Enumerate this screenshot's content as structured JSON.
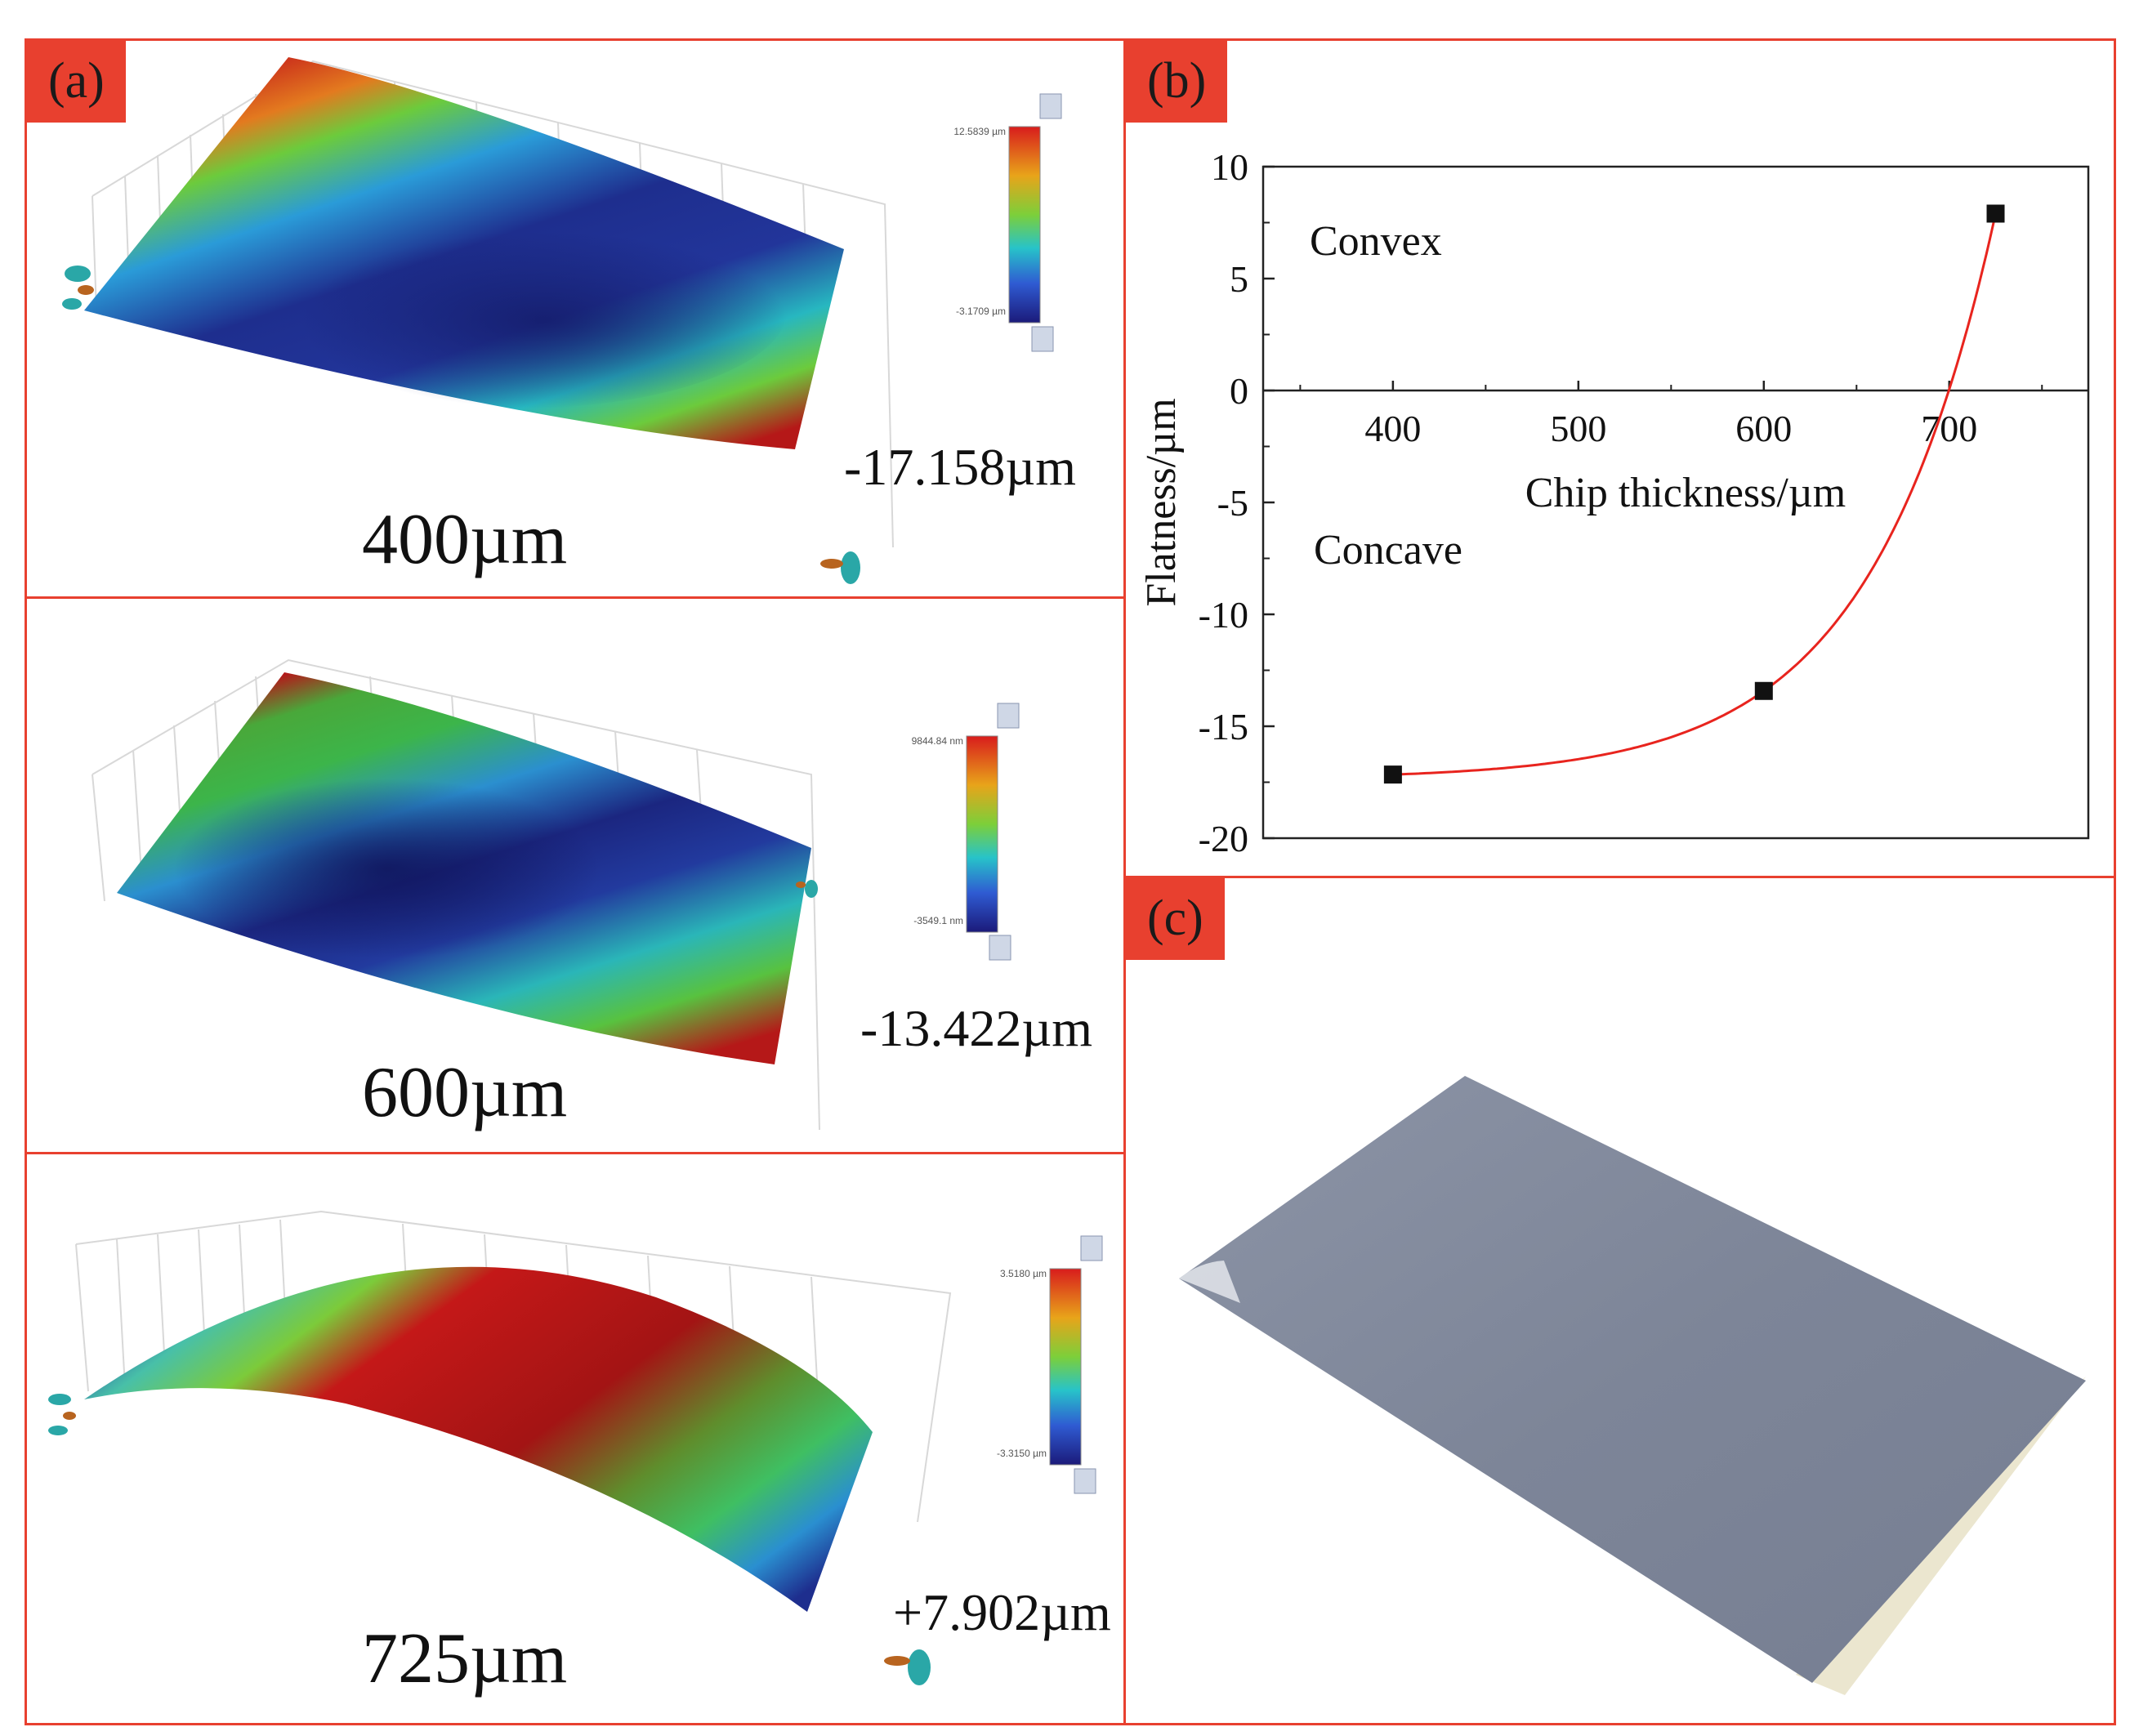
{
  "panels": {
    "a": {
      "tag": "(a)",
      "maps": [
        {
          "thickness": "400µm",
          "flatness": "-17.158µm",
          "scale_max": "12.5839 µm",
          "scale_min": "-3.1709 µm"
        },
        {
          "thickness": "600µm",
          "flatness": "-13.422µm",
          "scale_max": "9844.84 nm",
          "scale_min": "-3549.1 nm"
        },
        {
          "thickness": "725µm",
          "flatness": "+7.902µm",
          "scale_max": "3.5180 µm",
          "scale_min": "-3.3150 µm"
        }
      ]
    },
    "b": {
      "tag": "(b)"
    },
    "c": {
      "tag": "(c)"
    }
  },
  "chart_data": {
    "type": "scatter",
    "xlabel": "Chip thickness/µm",
    "ylabel": "Flatness/µm",
    "xlim": [
      330,
      775
    ],
    "ylim": [
      -20,
      10
    ],
    "xticks": [
      400,
      500,
      600,
      700
    ],
    "yticks": [
      10,
      5,
      0,
      -5,
      -10,
      -15,
      -20
    ],
    "series": [
      {
        "x": [
          400,
          600,
          725
        ],
        "y": [
          -17.158,
          -13.422,
          7.902
        ],
        "marker": "square",
        "color": "#111111"
      }
    ],
    "fit_curve_color": "#e8241e",
    "annotations": [
      "Convex",
      "Concave"
    ],
    "grid": false
  }
}
